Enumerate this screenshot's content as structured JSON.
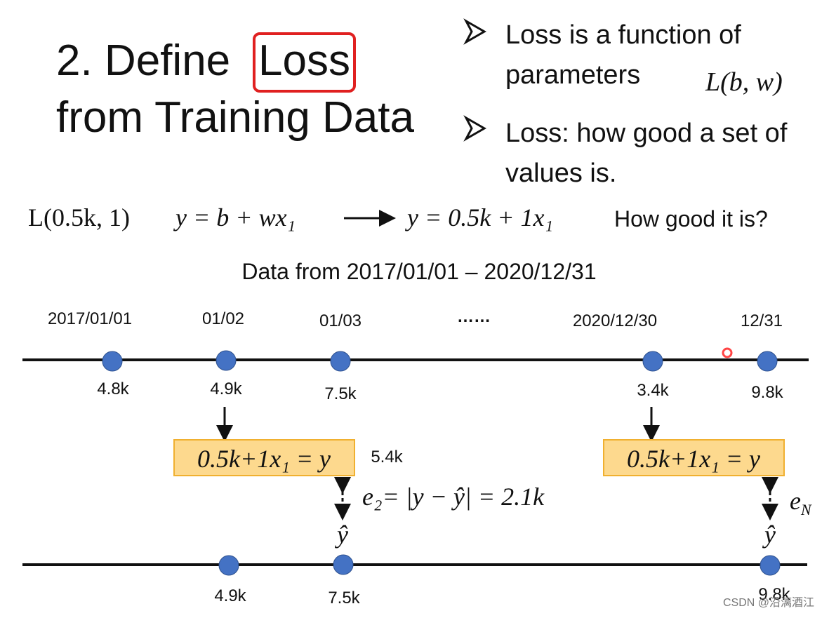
{
  "title": {
    "line1": "2. Define",
    "highlight": "Loss",
    "line2": "from Training Data"
  },
  "bullets": [
    {
      "text": "Loss is a function of parameters",
      "formula": "L(b, w)"
    },
    {
      "text": "Loss: how good a set of values is."
    }
  ],
  "equation": {
    "loss": "L(0.5k, 1)",
    "model": "y = b + wx₁",
    "instance": "y = 0.5k + 1x₁",
    "question": "How good it is?"
  },
  "data_range": "Data from 2017/01/01 – 2020/12/31",
  "timeline": {
    "dates": [
      "2017/01/01",
      "01/02",
      "01/03",
      "……",
      "2020/12/30",
      "12/31"
    ],
    "labels": [
      "4.8k",
      "4.9k",
      "7.5k",
      "3.4k",
      "9.8k"
    ]
  },
  "predictions": [
    {
      "formula": "0.5k+1x₁ = y",
      "value": "5.4k"
    },
    {
      "formula": "0.5k+1x₁ = y"
    }
  ],
  "errors": [
    {
      "formula": "e₂= |y − ŷ| = 2.1k",
      "label": "ŷ"
    },
    {
      "base": "e",
      "sub": "N",
      "label": "ŷ"
    }
  ],
  "bottom_labels": [
    "4.9k",
    "7.5k",
    "9.8k"
  ],
  "watermark": "CSDN @沿漓酒江"
}
